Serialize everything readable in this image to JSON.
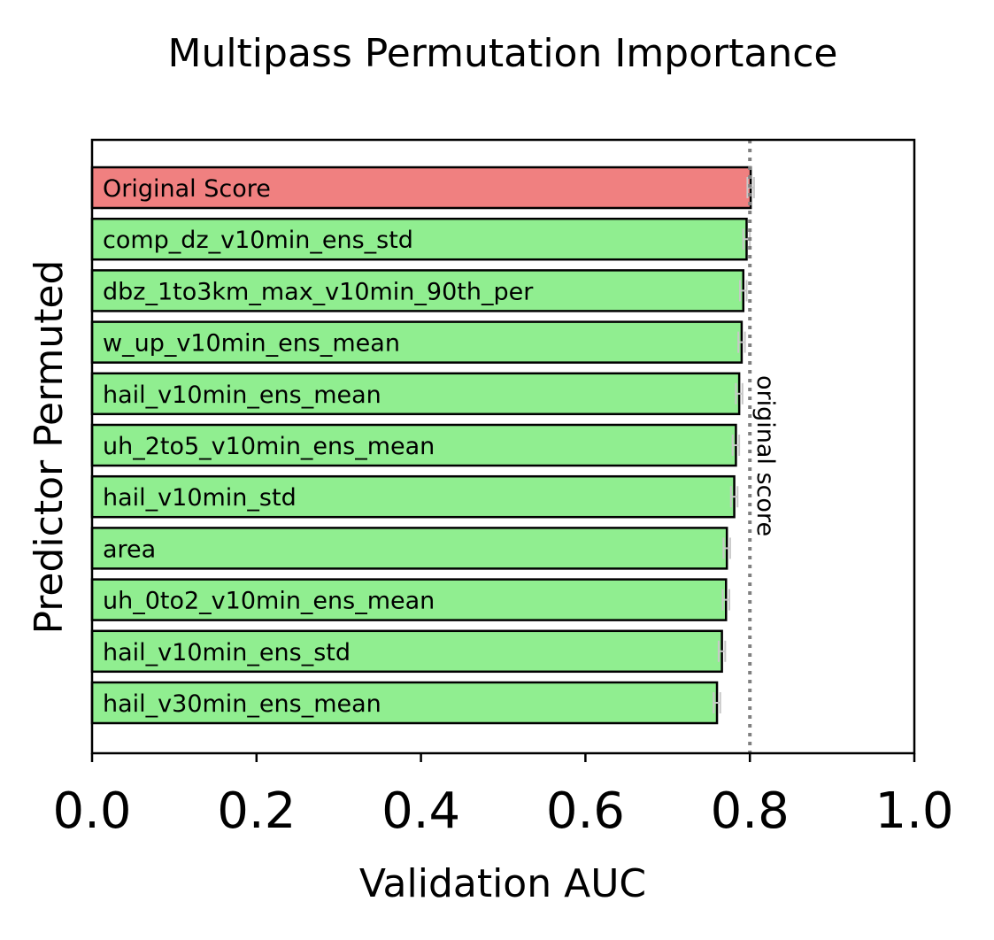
{
  "chart_data": {
    "type": "bar",
    "orientation": "horizontal",
    "title": "Multipass Permutation Importance",
    "xlabel": "Validation AUC",
    "ylabel": "Predictor Permuted",
    "xlim": [
      0,
      1
    ],
    "xticks": [
      "0.0",
      "0.2",
      "0.4",
      "0.6",
      "0.8",
      "1.0"
    ],
    "grid": false,
    "reference_line": {
      "value": 0.8,
      "label": "original score",
      "style": "dotted",
      "color": "#808080"
    },
    "colors": {
      "original": "#f08080",
      "permuted": "#90ee90",
      "edge": "#000000",
      "error_bar": "#c8c8c8"
    },
    "bars": [
      {
        "label": "Original Score",
        "value": 0.801,
        "error": 0.004,
        "kind": "original"
      },
      {
        "label": "comp_dz_v10min_ens_std",
        "value": 0.796,
        "error": 0.004,
        "kind": "permuted"
      },
      {
        "label": "dbz_1to3km_max_v10min_90th_per",
        "value": 0.792,
        "error": 0.004,
        "kind": "permuted"
      },
      {
        "label": "w_up_v10min_ens_mean",
        "value": 0.79,
        "error": 0.004,
        "kind": "permuted"
      },
      {
        "label": "hail_v10min_ens_mean",
        "value": 0.787,
        "error": 0.004,
        "kind": "permuted"
      },
      {
        "label": "uh_2to5_v10min_ens_mean",
        "value": 0.783,
        "error": 0.004,
        "kind": "permuted"
      },
      {
        "label": "hail_v10min_std",
        "value": 0.781,
        "error": 0.004,
        "kind": "permuted"
      },
      {
        "label": "area",
        "value": 0.772,
        "error": 0.004,
        "kind": "permuted"
      },
      {
        "label": "uh_0to2_v10min_ens_mean",
        "value": 0.771,
        "error": 0.004,
        "kind": "permuted"
      },
      {
        "label": "hail_v10min_ens_std",
        "value": 0.766,
        "error": 0.004,
        "kind": "permuted"
      },
      {
        "label": "hail_v30min_ens_mean",
        "value": 0.76,
        "error": 0.004,
        "kind": "permuted"
      }
    ]
  }
}
